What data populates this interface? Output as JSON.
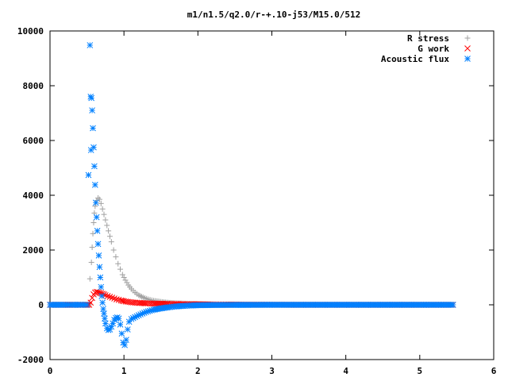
{
  "chart_data": {
    "type": "scatter",
    "title": "m1/n1.5/q2.0/r-+.10-j53/M15.0/512",
    "xlabel": "",
    "ylabel": "",
    "xlim": [
      0,
      6
    ],
    "ylim": [
      -2000,
      10000
    ],
    "xticks": [
      "0",
      "1",
      "2",
      "3",
      "4",
      "5",
      "6"
    ],
    "yticks": [
      "-2000",
      "0",
      "2000",
      "4000",
      "6000",
      "8000",
      "10000"
    ],
    "grid": false,
    "legend": "top-right",
    "series": [
      {
        "name": "R stress",
        "marker": "+",
        "color": "#a0a0a0",
        "points": [
          [
            0.0,
            0
          ],
          [
            0.2,
            0
          ],
          [
            0.4,
            0
          ],
          [
            0.53,
            0
          ],
          [
            0.54,
            950
          ],
          [
            0.56,
            1550
          ],
          [
            0.57,
            2100
          ],
          [
            0.58,
            2600
          ],
          [
            0.59,
            3000
          ],
          [
            0.6,
            3350
          ],
          [
            0.61,
            3600
          ],
          [
            0.63,
            3800
          ],
          [
            0.65,
            3900
          ],
          [
            0.67,
            3850
          ],
          [
            0.69,
            3700
          ],
          [
            0.71,
            3500
          ],
          [
            0.73,
            3300
          ],
          [
            0.75,
            3100
          ],
          [
            0.77,
            2900
          ],
          [
            0.79,
            2700
          ],
          [
            0.81,
            2500
          ],
          [
            0.83,
            2300
          ],
          [
            0.86,
            2000
          ],
          [
            0.89,
            1750
          ],
          [
            0.92,
            1500
          ],
          [
            0.95,
            1300
          ],
          [
            0.98,
            1100
          ],
          [
            1.02,
            900
          ],
          [
            1.06,
            720
          ],
          [
            1.1,
            580
          ],
          [
            1.15,
            450
          ],
          [
            1.2,
            350
          ],
          [
            1.26,
            270
          ],
          [
            1.33,
            200
          ],
          [
            1.4,
            150
          ],
          [
            1.5,
            110
          ],
          [
            1.6,
            80
          ],
          [
            1.75,
            55
          ],
          [
            1.9,
            40
          ],
          [
            2.1,
            25
          ],
          [
            2.3,
            15
          ],
          [
            2.5,
            8
          ],
          [
            3.0,
            3
          ],
          [
            3.5,
            1
          ],
          [
            4.0,
            0
          ],
          [
            4.5,
            0
          ],
          [
            5.0,
            0
          ],
          [
            5.45,
            0
          ]
        ]
      },
      {
        "name": "G work",
        "marker": "x",
        "color": "#ff0000",
        "points": [
          [
            0.0,
            0
          ],
          [
            0.2,
            0
          ],
          [
            0.4,
            0
          ],
          [
            0.53,
            0
          ],
          [
            0.55,
            80
          ],
          [
            0.57,
            250
          ],
          [
            0.59,
            380
          ],
          [
            0.61,
            450
          ],
          [
            0.63,
            470
          ],
          [
            0.65,
            460
          ],
          [
            0.67,
            440
          ],
          [
            0.69,
            420
          ],
          [
            0.71,
            400
          ],
          [
            0.73,
            380
          ],
          [
            0.75,
            350
          ],
          [
            0.78,
            320
          ],
          [
            0.81,
            290
          ],
          [
            0.84,
            260
          ],
          [
            0.87,
            230
          ],
          [
            0.9,
            200
          ],
          [
            0.93,
            180
          ],
          [
            0.96,
            160
          ],
          [
            1.0,
            130
          ],
          [
            1.05,
            110
          ],
          [
            1.1,
            90
          ],
          [
            1.2,
            70
          ],
          [
            1.3,
            55
          ],
          [
            1.4,
            45
          ],
          [
            1.5,
            40
          ],
          [
            1.6,
            35
          ],
          [
            1.7,
            30
          ],
          [
            1.8,
            25
          ],
          [
            1.9,
            20
          ],
          [
            2.0,
            18
          ],
          [
            2.1,
            15
          ],
          [
            2.2,
            12
          ],
          [
            2.4,
            8
          ],
          [
            2.6,
            5
          ],
          [
            3.0,
            2
          ],
          [
            3.5,
            0
          ],
          [
            4.0,
            0
          ],
          [
            4.5,
            0
          ],
          [
            5.0,
            0
          ],
          [
            5.45,
            0
          ]
        ]
      },
      {
        "name": "Acoustic flux",
        "marker": "*",
        "color": "#0080ff",
        "points": [
          [
            0.0,
            0
          ],
          [
            0.1,
            0
          ],
          [
            0.2,
            0
          ],
          [
            0.3,
            0
          ],
          [
            0.4,
            0
          ],
          [
            0.5,
            0
          ],
          [
            0.54,
            9480
          ],
          [
            0.55,
            7600
          ],
          [
            0.56,
            7550
          ],
          [
            0.57,
            7100
          ],
          [
            0.58,
            6450
          ],
          [
            0.59,
            5750
          ],
          [
            0.555,
            5650
          ],
          [
            0.6,
            5060
          ],
          [
            0.61,
            4380
          ],
          [
            0.62,
            3730
          ],
          [
            0.63,
            3200
          ],
          [
            0.64,
            2700
          ],
          [
            0.65,
            2220
          ],
          [
            0.66,
            1800
          ],
          [
            0.67,
            1380
          ],
          [
            0.68,
            1000
          ],
          [
            0.69,
            650
          ],
          [
            0.7,
            320
          ],
          [
            0.71,
            80
          ],
          [
            0.72,
            -150
          ],
          [
            0.73,
            -320
          ],
          [
            0.74,
            -500
          ],
          [
            0.75,
            -680
          ],
          [
            0.77,
            -860
          ],
          [
            0.79,
            -920
          ],
          [
            0.81,
            -900
          ],
          [
            0.83,
            -800
          ],
          [
            0.85,
            -680
          ],
          [
            0.87,
            -550
          ],
          [
            0.89,
            -480
          ],
          [
            0.91,
            -460
          ],
          [
            0.93,
            -500
          ],
          [
            0.95,
            -720
          ],
          [
            0.97,
            -1050
          ],
          [
            0.99,
            -1380
          ],
          [
            1.01,
            -1470
          ],
          [
            1.03,
            -1280
          ],
          [
            1.05,
            -900
          ],
          [
            1.07,
            -620
          ],
          [
            1.1,
            -520
          ],
          [
            1.15,
            -450
          ],
          [
            1.2,
            -380
          ],
          [
            1.25,
            -320
          ],
          [
            1.3,
            -260
          ],
          [
            1.4,
            -180
          ],
          [
            1.5,
            -130
          ],
          [
            1.6,
            -90
          ],
          [
            1.7,
            -60
          ],
          [
            1.8,
            -40
          ],
          [
            1.9,
            -25
          ],
          [
            2.0,
            -15
          ],
          [
            2.2,
            -8
          ],
          [
            2.5,
            -4
          ],
          [
            3.0,
            0
          ],
          [
            3.5,
            0
          ],
          [
            4.0,
            0
          ],
          [
            4.5,
            0
          ],
          [
            5.0,
            0
          ],
          [
            5.45,
            0
          ]
        ]
      }
    ]
  }
}
